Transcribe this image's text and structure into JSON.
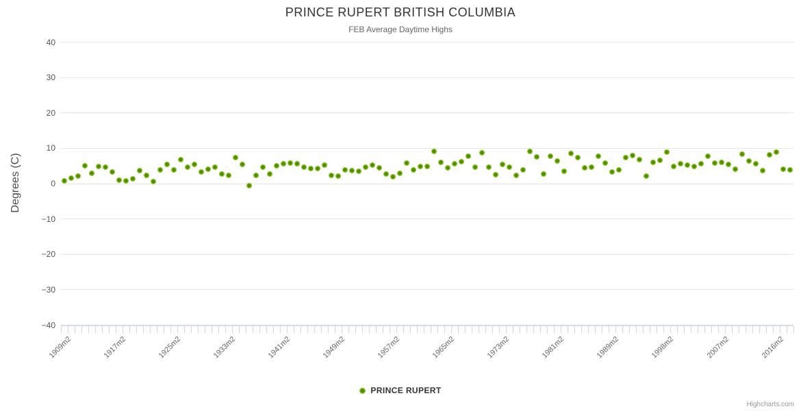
{
  "chart": {
    "credit": "Highcharts.com"
  },
  "chart_data": {
    "type": "scatter",
    "title": "PRINCE RUPERT BRITISH COLUMBIA",
    "subtitle": "FEB Average Daytime Highs",
    "xlabel": "",
    "ylabel": "Degrees (C)",
    "ylim": [
      -40,
      40
    ],
    "y_ticks": [
      40,
      30,
      20,
      10,
      0,
      -10,
      -20,
      -30,
      -40
    ],
    "y_tick_labels": [
      "40",
      "30",
      "20",
      "10",
      "0",
      "−10",
      "−20",
      "−30",
      "−40"
    ],
    "x_label_step": 8,
    "x_tick_labels": [
      "1909m2",
      "1917m2",
      "1925m2",
      "1933m2",
      "1941m2",
      "1949m2",
      "1957m2",
      "1965m2",
      "1973m2",
      "1981m2",
      "1989m2",
      "1998m2",
      "2007m2",
      "2016m2"
    ],
    "grid": true,
    "legend_position": "bottom-center",
    "marker_colors": {
      "fill": "#8cc41d",
      "core": "#4c8c08"
    },
    "axis_colors": {
      "grid": "#e6e6e6",
      "axis_line": "#ccd6eb"
    },
    "series": [
      {
        "name": "PRINCE RUPERT",
        "color": "#8cc41d",
        "categories": [
          "1909m2",
          "1910m2",
          "1911m2",
          "1912m2",
          "1913m2",
          "1914m2",
          "1915m2",
          "1916m2",
          "1917m2",
          "1918m2",
          "1919m2",
          "1920m2",
          "1921m2",
          "1922m2",
          "1923m2",
          "1924m2",
          "1925m2",
          "1926m2",
          "1927m2",
          "1928m2",
          "1929m2",
          "1930m2",
          "1931m2",
          "1932m2",
          "1933m2",
          "1934m2",
          "1935m2",
          "1936m2",
          "1937m2",
          "1938m2",
          "1939m2",
          "1940m2",
          "1941m2",
          "1942m2",
          "1943m2",
          "1944m2",
          "1945m2",
          "1946m2",
          "1947m2",
          "1948m2",
          "1949m2",
          "1950m2",
          "1951m2",
          "1952m2",
          "1953m2",
          "1954m2",
          "1955m2",
          "1956m2",
          "1957m2",
          "1958m2",
          "1959m2",
          "1960m2",
          "1961m2",
          "1962m2",
          "1963m2",
          "1964m2",
          "1965m2",
          "1966m2",
          "1967m2",
          "1968m2",
          "1969m2",
          "1970m2",
          "1971m2",
          "1972m2",
          "1973m2",
          "1974m2",
          "1975m2",
          "1976m2",
          "1977m2",
          "1978m2",
          "1979m2",
          "1980m2",
          "1981m2",
          "1982m2",
          "1983m2",
          "1984m2",
          "1985m2",
          "1986m2",
          "1987m2",
          "1988m2",
          "1989m2",
          "1990m2",
          "1991m2",
          "1992m2",
          "1993m2",
          "1994m2",
          "1996m2",
          "1997m2",
          "1998m2",
          "1999m2",
          "2000m2",
          "2001m2",
          "2002m2",
          "2004m2",
          "2005m2",
          "2006m2",
          "2007m2",
          "2008m2",
          "2009m2",
          "2011m2",
          "2012m2",
          "2013m2",
          "2014m2",
          "2015m2",
          "2016m2",
          "2017m2",
          "2018m2"
        ],
        "values": [
          0.7,
          1.5,
          2.1,
          5.1,
          3.0,
          4.8,
          4.6,
          3.2,
          0.9,
          0.8,
          1.3,
          3.7,
          2.3,
          0.5,
          3.9,
          5.5,
          3.8,
          6.8,
          4.6,
          5.5,
          3.2,
          4.1,
          4.6,
          2.7,
          2.4,
          7.4,
          5.5,
          -0.6,
          2.4,
          4.6,
          2.8,
          5.0,
          5.6,
          5.8,
          5.7,
          4.6,
          4.3,
          4.3,
          5.2,
          2.4,
          2.2,
          3.8,
          3.6,
          3.5,
          4.6,
          5.2,
          4.4,
          2.8,
          2.0,
          3.0,
          5.9,
          3.9,
          4.9,
          4.8,
          9.2,
          6.0,
          4.4,
          5.7,
          6.2,
          7.8,
          4.7,
          8.8,
          4.6,
          2.6,
          5.5,
          4.6,
          2.4,
          3.9,
          9.1,
          7.5,
          2.7,
          7.8,
          6.4,
          3.5,
          8.6,
          7.4,
          4.4,
          4.6,
          7.7,
          5.9,
          3.3,
          3.8,
          7.4,
          8.0,
          6.7,
          2.2,
          6.1,
          6.5,
          9.0,
          4.9,
          5.7,
          5.2,
          4.8,
          5.7,
          7.8,
          5.9,
          6.1,
          5.4,
          4.1,
          8.3,
          6.4,
          5.7,
          3.6,
          8.2,
          9.0,
          4.0,
          3.8
        ]
      }
    ]
  }
}
